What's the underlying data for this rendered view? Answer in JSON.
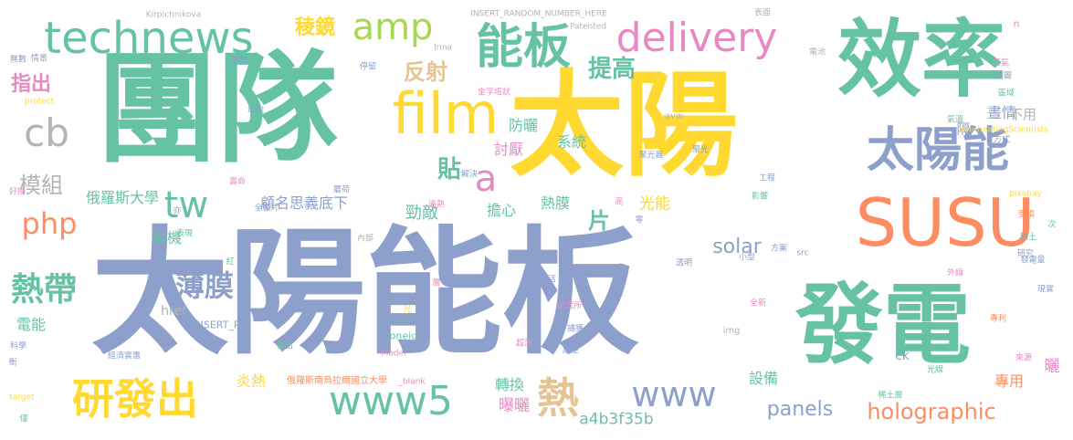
{
  "palette": {
    "green": "#66c2a5",
    "orange": "#fc8d62",
    "blue": "#8da0cb",
    "pink": "#e78ac3",
    "lime": "#a6d854",
    "yellow": "#ffd92f",
    "tan": "#e5c494",
    "gray": "#b3b3b3"
  },
  "words": [
    {
      "text": "太陽能板",
      "color": "blue"
    },
    {
      "text": "團隊",
      "color": "green"
    },
    {
      "text": "太陽",
      "color": "yellow"
    },
    {
      "text": "效率",
      "color": "green"
    },
    {
      "text": "發電",
      "color": "green"
    },
    {
      "text": "SUSU",
      "color": "orange"
    },
    {
      "text": "technews",
      "color": "green"
    },
    {
      "text": "能板",
      "color": "green"
    },
    {
      "text": "film",
      "color": "yellow"
    },
    {
      "text": "太陽能",
      "color": "blue"
    },
    {
      "text": "delivery",
      "color": "pink"
    },
    {
      "text": "amp",
      "color": "lime"
    },
    {
      "text": "www5",
      "color": "green"
    },
    {
      "text": "研發出",
      "color": "yellow"
    },
    {
      "text": "熱",
      "color": "tan"
    },
    {
      "text": "www",
      "color": "blue"
    },
    {
      "text": "cb",
      "color": "gray"
    },
    {
      "text": "tw",
      "color": "green"
    },
    {
      "text": "php",
      "color": "orange"
    },
    {
      "text": "a",
      "color": "pink"
    },
    {
      "text": "熱帶",
      "color": "green"
    },
    {
      "text": "薄膜",
      "color": "blue"
    },
    {
      "text": "模組",
      "color": "gray"
    },
    {
      "text": "holographic",
      "color": "orange"
    },
    {
      "text": "panels",
      "color": "blue"
    },
    {
      "text": "solar",
      "color": "blue"
    },
    {
      "text": "提高",
      "color": "green"
    },
    {
      "text": "反射",
      "color": "tan"
    },
    {
      "text": "稜鏡",
      "color": "yellow"
    },
    {
      "text": "指出",
      "color": "pink"
    },
    {
      "text": "貼",
      "color": "green"
    },
    {
      "text": "片",
      "color": "green"
    },
    {
      "text": "光能",
      "color": "yellow"
    },
    {
      "text": "勁敵",
      "color": "green"
    },
    {
      "text": "顧名思義底下",
      "color": "blue"
    },
    {
      "text": "俄羅斯大學",
      "color": "green"
    },
    {
      "text": "電機",
      "color": "green"
    },
    {
      "text": "電能",
      "color": "green"
    },
    {
      "text": "熱膜",
      "color": "green"
    },
    {
      "text": "擔心",
      "color": "green"
    },
    {
      "text": "系統",
      "color": "green"
    },
    {
      "text": "討厭",
      "color": "pink"
    },
    {
      "text": "防曬",
      "color": "green"
    },
    {
      "text": "轉換",
      "color": "green"
    },
    {
      "text": "曝曬",
      "color": "pink"
    },
    {
      "text": "炎熱",
      "color": "yellow"
    },
    {
      "text": "設備",
      "color": "green"
    },
    {
      "text": "專用",
      "color": "orange"
    },
    {
      "text": "a4b3f35b",
      "color": "green"
    },
    {
      "text": "ck",
      "color": "blue"
    },
    {
      "text": "曬",
      "color": "pink"
    },
    {
      "text": "隔",
      "color": "blue"
    },
    {
      "text": "晝情",
      "color": "blue"
    },
    {
      "text": "不用",
      "color": "gray"
    },
    {
      "text": "href",
      "color": "gray"
    },
    {
      "text": "n",
      "color": "pink"
    },
    {
      "text": "INSERT_RA",
      "color": "blue"
    },
    {
      "text": "zoneid",
      "color": "green"
    },
    {
      "text": "俄羅斯南烏拉爾國立大學",
      "color": "orange"
    },
    {
      "text": "INSERT_RANDOM_NUMBER_HERE",
      "color": "gray"
    },
    {
      "text": "Kirpichnikova",
      "color": "gray"
    },
    {
      "text": "Patented",
      "color": "gray"
    },
    {
      "text": "金字塔狀",
      "color": "pink"
    },
    {
      "text": "聚光器",
      "color": "blue"
    },
    {
      "text": "overheatingScientists",
      "color": "yellow"
    },
    {
      "text": "pixabay",
      "color": "yellow"
    },
    {
      "text": "src",
      "color": "blue"
    },
    {
      "text": "img",
      "color": "gray"
    },
    {
      "text": "Model",
      "color": "pink"
    },
    {
      "text": "_blank",
      "color": "pink"
    },
    {
      "text": "target",
      "color": "yellow"
    },
    {
      "text": "protect",
      "color": "yellow"
    },
    {
      "text": "avw",
      "color": "gray"
    },
    {
      "text": "Irina",
      "color": "gray"
    },
    {
      "text": "電池",
      "color": "gray"
    },
    {
      "text": "天氣",
      "color": "pink"
    },
    {
      "text": "首圖",
      "color": "blue"
    },
    {
      "text": "區域",
      "color": "green"
    },
    {
      "text": "氣溫",
      "color": "green"
    },
    {
      "text": "方式",
      "color": "blue"
    },
    {
      "text": "工程",
      "color": "blue"
    },
    {
      "text": "影響",
      "color": "green"
    },
    {
      "text": "受損",
      "color": "orange"
    },
    {
      "text": "稀土",
      "color": "green"
    },
    {
      "text": "研究",
      "color": "blue"
    },
    {
      "text": "發電量",
      "color": "blue"
    },
    {
      "text": "外線",
      "color": "pink"
    },
    {
      "text": "現實",
      "color": "blue"
    },
    {
      "text": "專利",
      "color": "orange"
    },
    {
      "text": "來源",
      "color": "pink"
    },
    {
      "text": "光線",
      "color": "green"
    },
    {
      "text": "稀土層",
      "color": "green"
    },
    {
      "text": "超薄",
      "color": "pink"
    },
    {
      "text": "捕獲",
      "color": "blue"
    },
    {
      "text": "順便",
      "color": "blue"
    },
    {
      "text": "研究所",
      "color": "pink"
    },
    {
      "text": "生活",
      "color": "blue"
    },
    {
      "text": "全新",
      "color": "pink"
    },
    {
      "text": "方案",
      "color": "blue"
    },
    {
      "text": "小型",
      "color": "blue"
    },
    {
      "text": "透明",
      "color": "blue"
    },
    {
      "text": "經濟實惠",
      "color": "blue"
    },
    {
      "text": "提出",
      "color": "green"
    },
    {
      "text": "科學",
      "color": "blue"
    },
    {
      "text": "僅",
      "color": "green"
    },
    {
      "text": "內部",
      "color": "gray"
    },
    {
      "text": "全像片",
      "color": "blue"
    },
    {
      "text": "表現",
      "color": "green"
    },
    {
      "text": "壽命",
      "color": "pink"
    },
    {
      "text": "解決",
      "color": "blue"
    },
    {
      "text": "增加",
      "color": "blue"
    },
    {
      "text": "無數",
      "color": "blue"
    },
    {
      "text": "情景",
      "color": "blue"
    },
    {
      "text": "好換",
      "color": "pink"
    },
    {
      "text": "簡單",
      "color": "blue"
    },
    {
      "text": "停留",
      "color": "blue"
    },
    {
      "text": "表面",
      "color": "gray"
    },
    {
      "text": "過熱",
      "color": "pink"
    },
    {
      "text": "高",
      "color": "pink"
    },
    {
      "text": "層",
      "color": "pink"
    },
    {
      "text": "全",
      "color": "blue"
    },
    {
      "text": "光",
      "color": "yellow"
    },
    {
      "text": "次",
      "color": "green"
    },
    {
      "text": "紅",
      "color": "green"
    },
    {
      "text": "亦",
      "color": "blue"
    },
    {
      "text": "零",
      "color": "blue"
    },
    {
      "text": "衡",
      "color": "blue"
    },
    {
      "text": "蘑荷",
      "color": "blue"
    },
    {
      "text": "聚光",
      "color": "blue"
    }
  ]
}
